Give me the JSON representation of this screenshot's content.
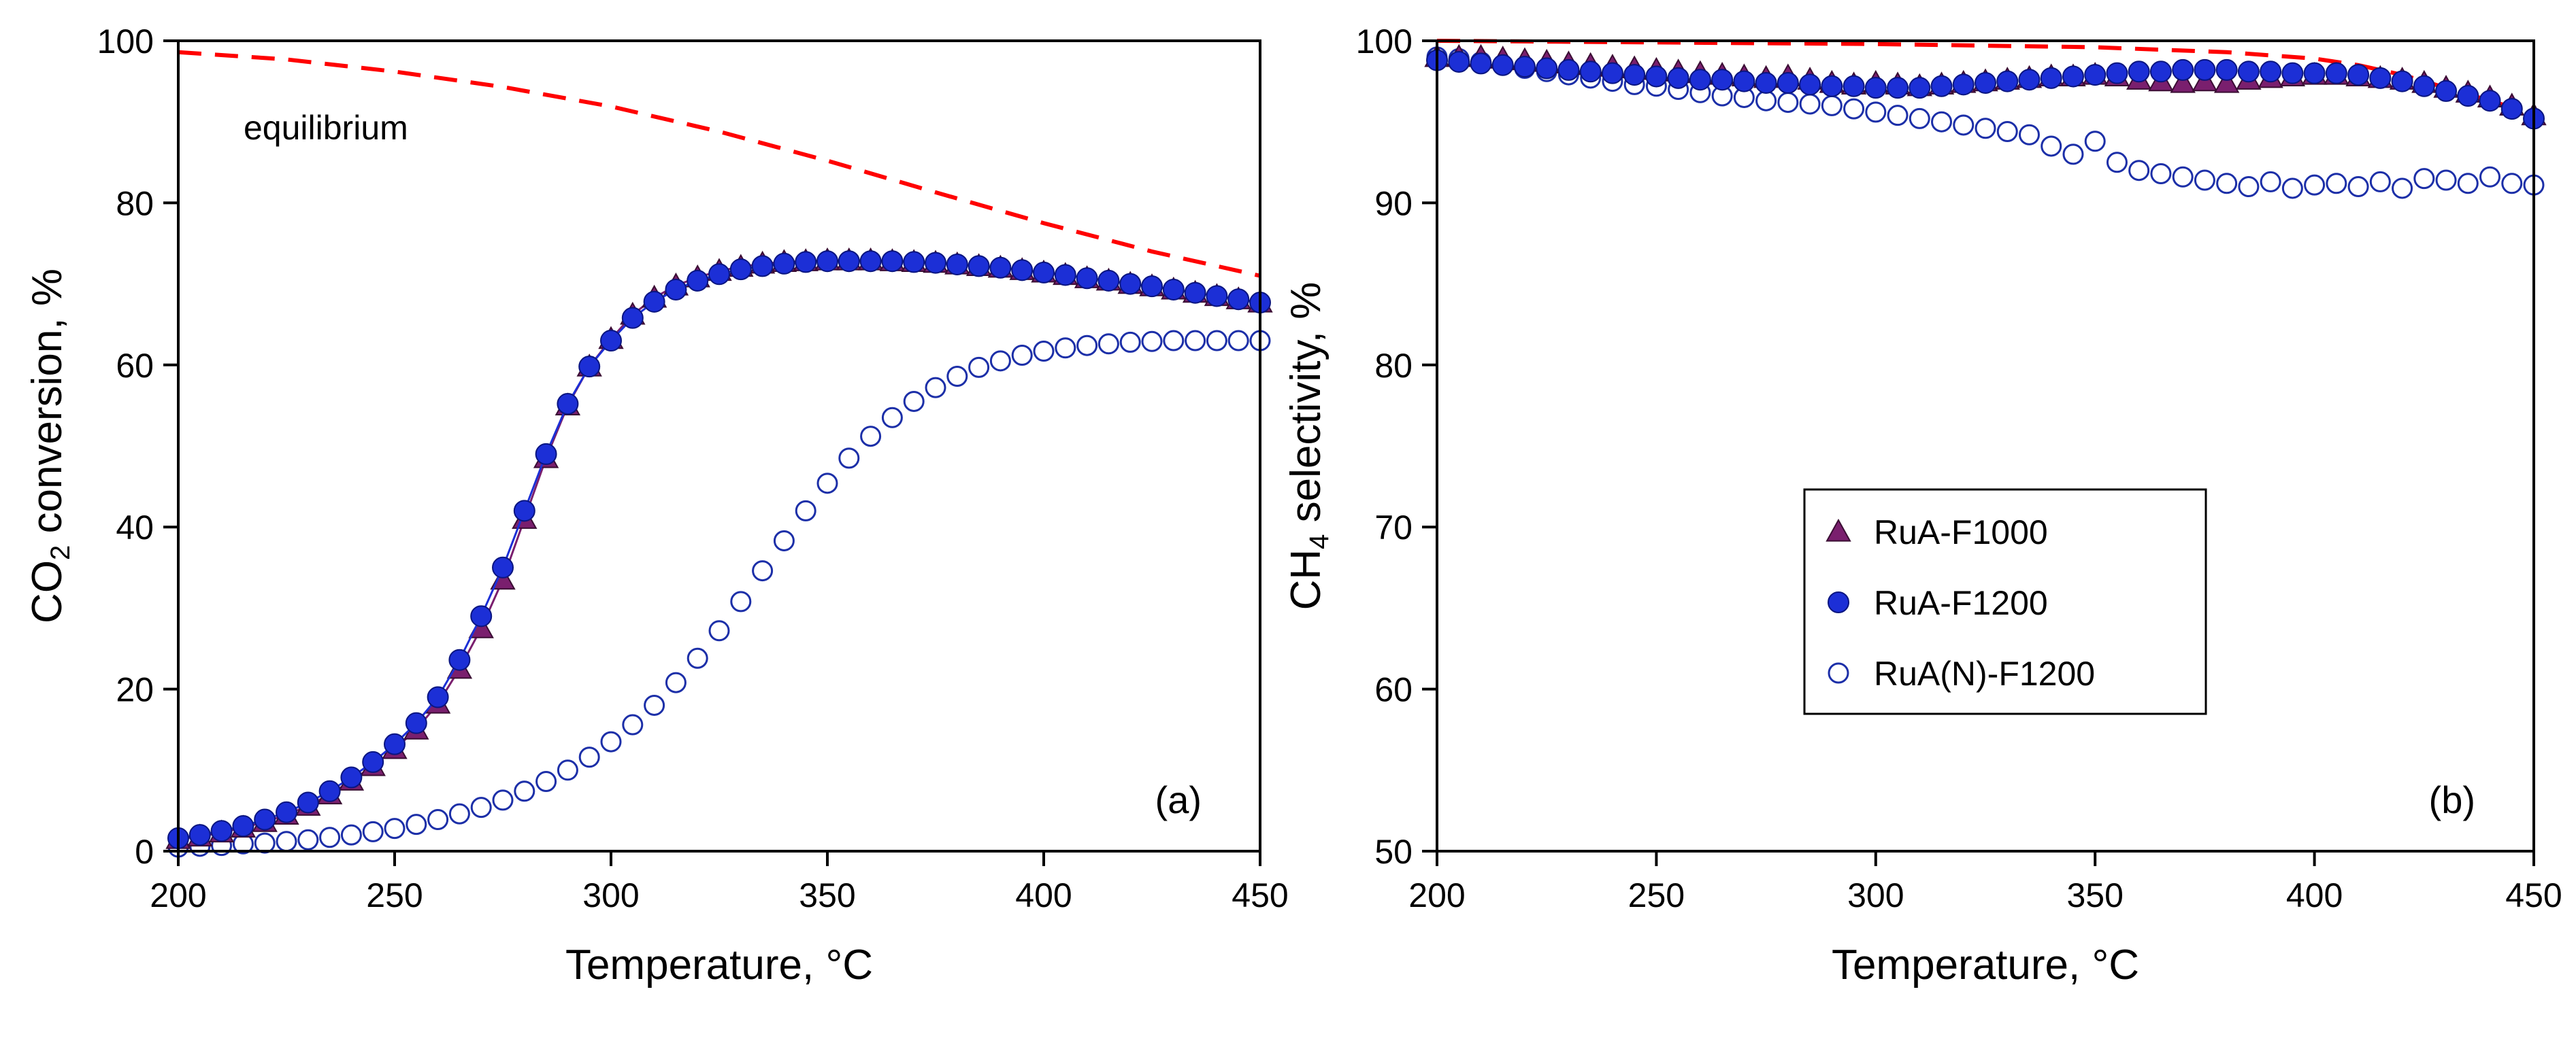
{
  "chart_data": [
    {
      "panel": "(a)",
      "type": "scatter",
      "xlabel": "Temperature, °C",
      "ylabel_main": "CO",
      "ylabel_sub": "2",
      "ylabel_rest": " conversion, %",
      "xlim": [
        200,
        450
      ],
      "ylim": [
        0,
        100
      ],
      "xticks": [
        200,
        250,
        300,
        350,
        400,
        450
      ],
      "yticks": [
        0,
        20,
        40,
        60,
        80,
        100
      ],
      "annotation": "equilibrium",
      "equilibrium": {
        "name": "equilibrium",
        "color": "#ff0000",
        "x": [
          200,
          225,
          250,
          275,
          300,
          325,
          350,
          375,
          400,
          425,
          450
        ],
        "y": [
          98.6,
          97.7,
          96.2,
          94.3,
          91.9,
          88.8,
          85.2,
          81.3,
          77.5,
          74.0,
          71.0
        ]
      },
      "series": [
        {
          "name": "RuA-F1000",
          "marker": "triangle",
          "color": "#7a1f6e",
          "x": [
            200,
            205,
            210,
            215,
            220,
            225,
            230,
            235,
            240,
            245,
            250,
            255,
            260,
            265,
            270,
            275,
            280,
            285,
            290,
            295,
            300,
            305,
            310,
            315,
            320,
            325,
            330,
            335,
            340,
            345,
            350,
            355,
            360,
            365,
            370,
            375,
            380,
            385,
            390,
            395,
            400,
            405,
            410,
            415,
            420,
            425,
            430,
            435,
            440,
            445,
            450
          ],
          "y": [
            1.5,
            1.8,
            2.3,
            2.9,
            3.6,
            4.5,
            5.6,
            7.0,
            8.7,
            10.5,
            12.6,
            15.0,
            18.2,
            22.5,
            27.5,
            33.5,
            41.0,
            48.5,
            55.0,
            59.8,
            63.2,
            66.2,
            68.3,
            69.8,
            70.8,
            71.6,
            72.1,
            72.5,
            72.7,
            72.8,
            72.9,
            72.9,
            72.9,
            72.8,
            72.7,
            72.6,
            72.4,
            72.2,
            72.0,
            71.7,
            71.4,
            71.1,
            70.7,
            70.4,
            70.0,
            69.7,
            69.3,
            68.9,
            68.5,
            68.1,
            67.7
          ]
        },
        {
          "name": "RuA-F1200",
          "marker": "filled-circle",
          "color": "#1c2fd6",
          "x": [
            200,
            205,
            210,
            215,
            220,
            225,
            230,
            235,
            240,
            245,
            250,
            255,
            260,
            265,
            270,
            275,
            280,
            285,
            290,
            295,
            300,
            305,
            310,
            315,
            320,
            325,
            330,
            335,
            340,
            345,
            350,
            355,
            360,
            365,
            370,
            375,
            380,
            385,
            390,
            395,
            400,
            405,
            410,
            415,
            420,
            425,
            430,
            435,
            440,
            445,
            450
          ],
          "y": [
            1.6,
            2.0,
            2.5,
            3.1,
            3.9,
            4.8,
            6.0,
            7.4,
            9.1,
            11.0,
            13.2,
            15.8,
            19.0,
            23.6,
            29.0,
            35.0,
            42.0,
            49.0,
            55.2,
            59.8,
            63.0,
            65.8,
            67.8,
            69.3,
            70.4,
            71.2,
            71.8,
            72.2,
            72.5,
            72.7,
            72.8,
            72.8,
            72.8,
            72.8,
            72.7,
            72.6,
            72.4,
            72.2,
            72.0,
            71.7,
            71.4,
            71.1,
            70.7,
            70.4,
            70.0,
            69.7,
            69.3,
            68.9,
            68.5,
            68.1,
            67.7
          ]
        },
        {
          "name": "RuA(N)-F1200",
          "marker": "open-circle",
          "color": "#1c2fa8",
          "x": [
            200,
            205,
            210,
            215,
            220,
            225,
            230,
            235,
            240,
            245,
            250,
            255,
            260,
            265,
            270,
            275,
            280,
            285,
            290,
            295,
            300,
            305,
            310,
            315,
            320,
            325,
            330,
            335,
            340,
            345,
            350,
            355,
            360,
            365,
            370,
            375,
            380,
            385,
            390,
            395,
            400,
            405,
            410,
            415,
            420,
            425,
            430,
            435,
            440,
            445,
            450
          ],
          "y": [
            0.5,
            0.6,
            0.7,
            0.9,
            1.0,
            1.2,
            1.4,
            1.7,
            2.0,
            2.4,
            2.8,
            3.3,
            3.9,
            4.6,
            5.4,
            6.3,
            7.4,
            8.6,
            10.0,
            11.6,
            13.5,
            15.6,
            18.0,
            20.8,
            23.8,
            27.2,
            30.8,
            34.6,
            38.3,
            42.0,
            45.4,
            48.5,
            51.2,
            53.5,
            55.5,
            57.2,
            58.6,
            59.7,
            60.5,
            61.2,
            61.7,
            62.1,
            62.4,
            62.6,
            62.8,
            62.9,
            63.0,
            63.0,
            63.0,
            63.0,
            63.0
          ]
        }
      ]
    },
    {
      "panel": "(b)",
      "type": "scatter",
      "xlabel": "Temperature, °C",
      "ylabel_main": "CH",
      "ylabel_sub": "4",
      "ylabel_rest": " selectivity, %",
      "xlim": [
        200,
        450
      ],
      "ylim": [
        50,
        100
      ],
      "xticks": [
        200,
        250,
        300,
        350,
        400,
        450
      ],
      "yticks": [
        50,
        60,
        70,
        80,
        90,
        100
      ],
      "legend_position": "center-left",
      "equilibrium": {
        "name": "equilibrium",
        "color": "#ff0000",
        "x": [
          200,
          250,
          300,
          350,
          380,
          400,
          410,
          420,
          440,
          450
        ],
        "y": [
          100.0,
          99.9,
          99.8,
          99.6,
          99.3,
          98.9,
          98.5,
          97.9,
          96.3,
          95.5
        ]
      },
      "series": [
        {
          "name": "RuA-F1000",
          "marker": "triangle",
          "color": "#7a1f6e",
          "x": [
            200,
            205,
            210,
            215,
            220,
            225,
            230,
            235,
            240,
            245,
            250,
            255,
            260,
            265,
            270,
            275,
            280,
            285,
            290,
            295,
            300,
            305,
            310,
            315,
            320,
            325,
            330,
            335,
            340,
            345,
            350,
            355,
            360,
            365,
            370,
            375,
            380,
            385,
            390,
            395,
            400,
            405,
            410,
            415,
            420,
            425,
            430,
            435,
            440,
            445,
            450
          ],
          "y": [
            99.0,
            99.0,
            99.0,
            98.9,
            98.8,
            98.7,
            98.6,
            98.5,
            98.4,
            98.3,
            98.2,
            98.1,
            98.0,
            97.9,
            97.8,
            97.7,
            97.8,
            97.6,
            97.4,
            97.3,
            97.4,
            97.3,
            97.2,
            97.3,
            97.4,
            97.5,
            97.6,
            97.7,
            97.8,
            97.8,
            97.9,
            97.8,
            97.6,
            97.5,
            97.4,
            97.5,
            97.4,
            97.6,
            97.7,
            97.8,
            97.9,
            97.9,
            97.8,
            97.7,
            97.6,
            97.4,
            97.1,
            96.8,
            96.5,
            96.0,
            95.4
          ]
        },
        {
          "name": "RuA-F1200",
          "marker": "filled-circle",
          "color": "#1c2fd6",
          "x": [
            200,
            205,
            210,
            215,
            220,
            225,
            230,
            235,
            240,
            245,
            250,
            255,
            260,
            265,
            270,
            275,
            280,
            285,
            290,
            295,
            300,
            305,
            310,
            315,
            320,
            325,
            330,
            335,
            340,
            345,
            350,
            355,
            360,
            365,
            370,
            375,
            380,
            385,
            390,
            395,
            400,
            405,
            410,
            415,
            420,
            425,
            430,
            435,
            440,
            445,
            450
          ],
          "y": [
            98.8,
            98.7,
            98.6,
            98.5,
            98.4,
            98.3,
            98.2,
            98.1,
            98.0,
            97.9,
            97.8,
            97.7,
            97.6,
            97.6,
            97.5,
            97.4,
            97.4,
            97.3,
            97.2,
            97.2,
            97.1,
            97.1,
            97.1,
            97.2,
            97.3,
            97.4,
            97.5,
            97.6,
            97.7,
            97.8,
            97.9,
            98.0,
            98.1,
            98.1,
            98.2,
            98.2,
            98.2,
            98.1,
            98.1,
            98.0,
            98.0,
            98.0,
            97.9,
            97.7,
            97.5,
            97.2,
            96.9,
            96.6,
            96.3,
            95.8,
            95.2
          ]
        },
        {
          "name": "RuA(N)-F1200",
          "marker": "open-circle",
          "color": "#1c2fa8",
          "x": [
            200,
            205,
            210,
            215,
            220,
            225,
            230,
            235,
            240,
            245,
            250,
            255,
            260,
            265,
            270,
            275,
            280,
            285,
            290,
            295,
            300,
            305,
            310,
            315,
            320,
            325,
            330,
            335,
            340,
            345,
            350,
            355,
            360,
            365,
            370,
            375,
            380,
            385,
            390,
            395,
            400,
            405,
            410,
            415,
            420,
            425,
            430,
            435,
            440,
            445,
            450
          ],
          "y": [
            99.0,
            98.9,
            98.7,
            98.5,
            98.3,
            98.1,
            97.9,
            97.7,
            97.5,
            97.3,
            97.2,
            97.0,
            96.8,
            96.6,
            96.5,
            96.3,
            96.2,
            96.1,
            96.0,
            95.8,
            95.6,
            95.4,
            95.2,
            95.0,
            94.8,
            94.6,
            94.4,
            94.2,
            93.5,
            93.0,
            93.8,
            92.5,
            92.0,
            91.8,
            91.6,
            91.4,
            91.2,
            91.0,
            91.3,
            90.9,
            91.1,
            91.2,
            91.0,
            91.3,
            90.9,
            91.5,
            91.4,
            91.2,
            91.6,
            91.2,
            91.1
          ]
        }
      ]
    }
  ]
}
